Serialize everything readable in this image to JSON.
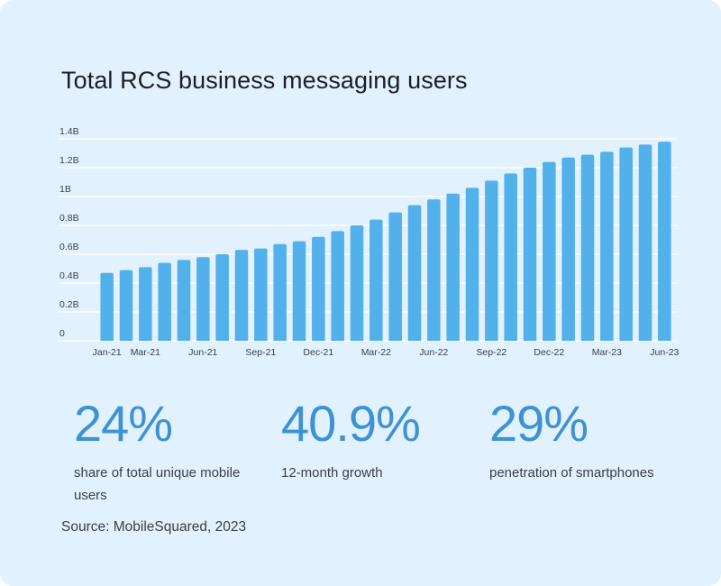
{
  "header": {
    "title": "Total RCS business messaging users"
  },
  "chart_data": {
    "type": "bar",
    "title": "Total RCS business messaging users",
    "xlabel": "",
    "ylabel": "",
    "unit": "B",
    "ylim": [
      0,
      1.4
    ],
    "y_ticks": [
      {
        "value": 0,
        "label": "0"
      },
      {
        "value": 0.2,
        "label": "0.2B"
      },
      {
        "value": 0.4,
        "label": "0.4B"
      },
      {
        "value": 0.6,
        "label": "0.6B"
      },
      {
        "value": 0.8,
        "label": "0.8B"
      },
      {
        "value": 1.0,
        "label": "1B"
      },
      {
        "value": 1.2,
        "label": "1.2B"
      },
      {
        "value": 1.4,
        "label": "1.4B"
      }
    ],
    "grid": true,
    "color": "#52b0ea",
    "categories": [
      "Jan-21",
      "Feb-21",
      "Mar-21",
      "Apr-21",
      "May-21",
      "Jun-21",
      "Jul-21",
      "Aug-21",
      "Sep-21",
      "Oct-21",
      "Nov-21",
      "Dec-21",
      "Jan-22",
      "Feb-22",
      "Mar-22",
      "Apr-22",
      "May-22",
      "Jun-22",
      "Jul-22",
      "Aug-22",
      "Sep-22",
      "Oct-22",
      "Nov-22",
      "Dec-22",
      "Jan-23",
      "Feb-23",
      "Mar-23",
      "Apr-23",
      "May-23",
      "Jun-23"
    ],
    "x_tick_labels": [
      "Jan-21",
      "Mar-21",
      "Jun-21",
      "Sep-21",
      "Dec-21",
      "Mar-22",
      "Jun-22",
      "Sep-22",
      "Dec-22",
      "Mar-23",
      "Jun-23"
    ],
    "values": [
      0.47,
      0.49,
      0.51,
      0.54,
      0.56,
      0.58,
      0.6,
      0.63,
      0.64,
      0.67,
      0.69,
      0.72,
      0.76,
      0.8,
      0.84,
      0.89,
      0.94,
      0.98,
      1.02,
      1.06,
      1.11,
      1.16,
      1.2,
      1.24,
      1.27,
      1.29,
      1.31,
      1.34,
      1.36,
      1.38
    ]
  },
  "stats": [
    {
      "value": "24%",
      "label": "share of total unique mobile users"
    },
    {
      "value": "40.9%",
      "label": "12-month growth"
    },
    {
      "value": "29%",
      "label": "penetration of smartphones"
    }
  ],
  "footer": {
    "source": "Source: MobileSquared, 2023"
  }
}
